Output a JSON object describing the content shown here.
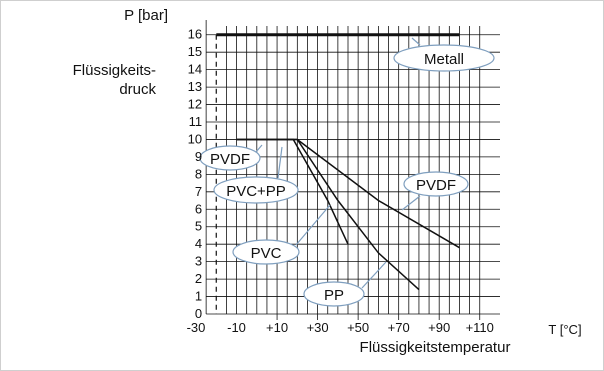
{
  "chart_data": {
    "type": "line",
    "xlabel": "Flüssigkeitstemperatur",
    "xunit": "T [°C]",
    "ylabel_lines": [
      "Flüssigkeits-",
      "druck"
    ],
    "yunit": "P [bar]",
    "xlim": [
      -30,
      120
    ],
    "ylim": [
      0,
      16.5
    ],
    "x_ticks": [
      "-30",
      "-10",
      "+10",
      "+30",
      "+50",
      "+70",
      "+90",
      "+110"
    ],
    "x_tick_values": [
      -30,
      -10,
      10,
      30,
      50,
      70,
      90,
      110
    ],
    "y_ticks": [
      0,
      1,
      2,
      3,
      4,
      5,
      6,
      7,
      8,
      9,
      10,
      11,
      12,
      13,
      14,
      15,
      16
    ],
    "reference_line_x": -20,
    "series": [
      {
        "name": "Metall",
        "x": [
          -20,
          100
        ],
        "y": [
          16,
          16
        ]
      },
      {
        "name": "PVDF",
        "x": [
          -10,
          20,
          60,
          100
        ],
        "y": [
          10,
          10,
          6.5,
          3.8
        ]
      },
      {
        "name": "PVC+PP",
        "x": [
          -10,
          20,
          40,
          60,
          80
        ],
        "y": [
          10,
          10,
          6.5,
          3.5,
          1.4
        ]
      },
      {
        "name": "PVC",
        "x": [
          -10,
          18,
          35,
          45
        ],
        "y": [
          10,
          10,
          6.5,
          4.0
        ]
      }
    ],
    "callouts": [
      {
        "text": "Metall",
        "series": "Metall"
      },
      {
        "text": "PVDF",
        "series": "PVDF"
      },
      {
        "text": "PVC+PP",
        "series": "PVC+PP"
      },
      {
        "text": "PVC",
        "series": "PVC"
      },
      {
        "text": "PP",
        "series": "PVC+PP"
      },
      {
        "text": "PVDF",
        "series": "PVDF"
      }
    ]
  }
}
